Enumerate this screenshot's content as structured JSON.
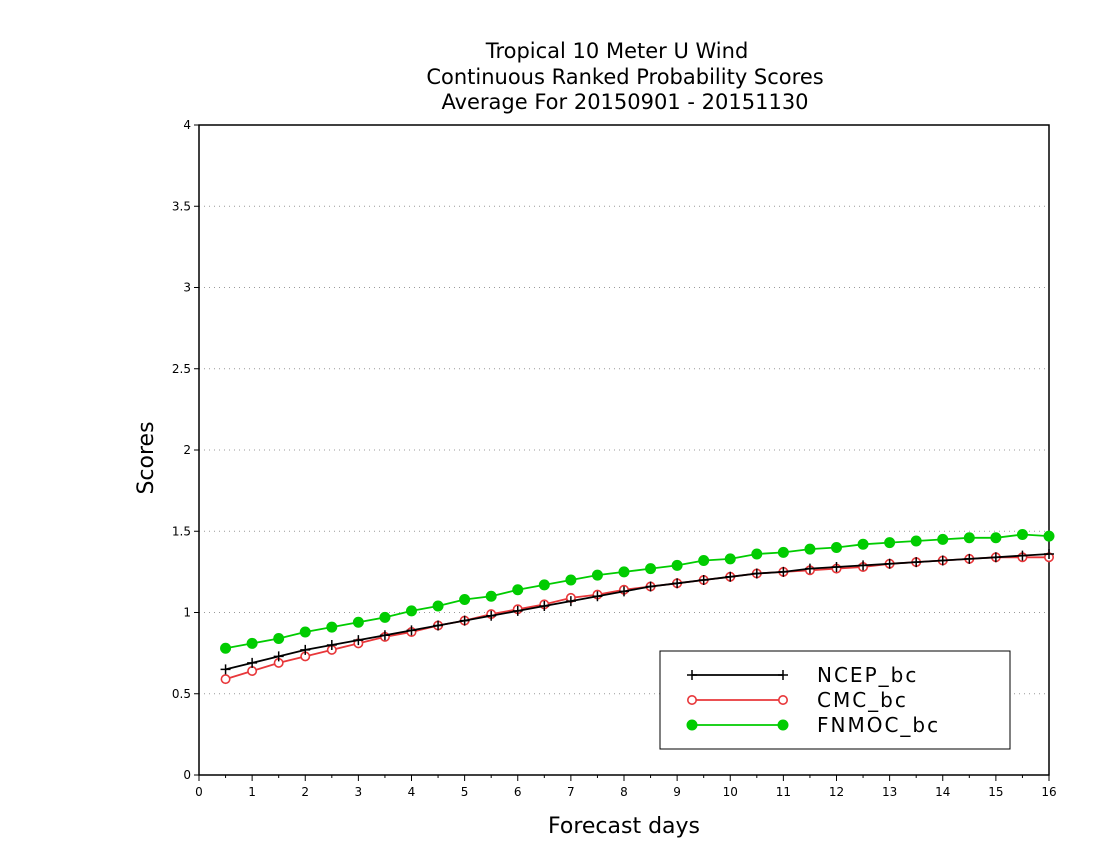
{
  "chart_data": {
    "type": "line",
    "title_lines": [
      "Tropical 10 Meter U Wind",
      "Continuous Ranked Probability Scores",
      "Average For 20150901 - 20151130"
    ],
    "xlabel": "Forecast days",
    "ylabel": "Scores",
    "xlim": [
      0,
      16
    ],
    "ylim": [
      0,
      4
    ],
    "x_ticks": [
      "0",
      "1",
      "2",
      "3",
      "4",
      "5",
      "6",
      "7",
      "8",
      "9",
      "10",
      "11",
      "12",
      "13",
      "14",
      "15",
      "16"
    ],
    "y_ticks": [
      "0",
      "0.5",
      "1",
      "1.5",
      "2",
      "2.5",
      "3",
      "3.5",
      "4"
    ],
    "grid": "horizontal dotted",
    "legend_position": "bottom-right",
    "x": [
      0.5,
      1,
      1.5,
      2,
      2.5,
      3,
      3.5,
      4,
      4.5,
      5,
      5.5,
      6,
      6.5,
      7,
      7.5,
      8,
      8.5,
      9,
      9.5,
      10,
      10.5,
      11,
      11.5,
      12,
      12.5,
      13,
      13.5,
      14,
      14.5,
      15,
      15.5,
      16
    ],
    "series": [
      {
        "name": "NCEP_bc",
        "color": "#000000",
        "marker": "plus",
        "values": [
          0.65,
          0.69,
          0.73,
          0.77,
          0.8,
          0.83,
          0.86,
          0.89,
          0.92,
          0.95,
          0.98,
          1.01,
          1.04,
          1.07,
          1.1,
          1.13,
          1.16,
          1.18,
          1.2,
          1.22,
          1.24,
          1.25,
          1.27,
          1.28,
          1.29,
          1.3,
          1.31,
          1.32,
          1.33,
          1.34,
          1.35,
          1.36
        ]
      },
      {
        "name": "CMC_bc",
        "color": "#e8373a",
        "marker": "open-circle",
        "values": [
          0.59,
          0.64,
          0.69,
          0.73,
          0.77,
          0.81,
          0.85,
          0.88,
          0.92,
          0.95,
          0.99,
          1.02,
          1.05,
          1.09,
          1.11,
          1.14,
          1.16,
          1.18,
          1.2,
          1.22,
          1.24,
          1.25,
          1.26,
          1.27,
          1.28,
          1.3,
          1.31,
          1.32,
          1.33,
          1.34,
          1.34,
          1.34
        ]
      },
      {
        "name": "FNMOC_bc",
        "color": "#00cc00",
        "marker": "filled-circle",
        "values": [
          0.78,
          0.81,
          0.84,
          0.88,
          0.91,
          0.94,
          0.97,
          1.01,
          1.04,
          1.08,
          1.1,
          1.14,
          1.17,
          1.2,
          1.23,
          1.25,
          1.27,
          1.29,
          1.32,
          1.33,
          1.36,
          1.37,
          1.39,
          1.4,
          1.42,
          1.43,
          1.44,
          1.45,
          1.46,
          1.46,
          1.48,
          1.47
        ]
      }
    ]
  }
}
